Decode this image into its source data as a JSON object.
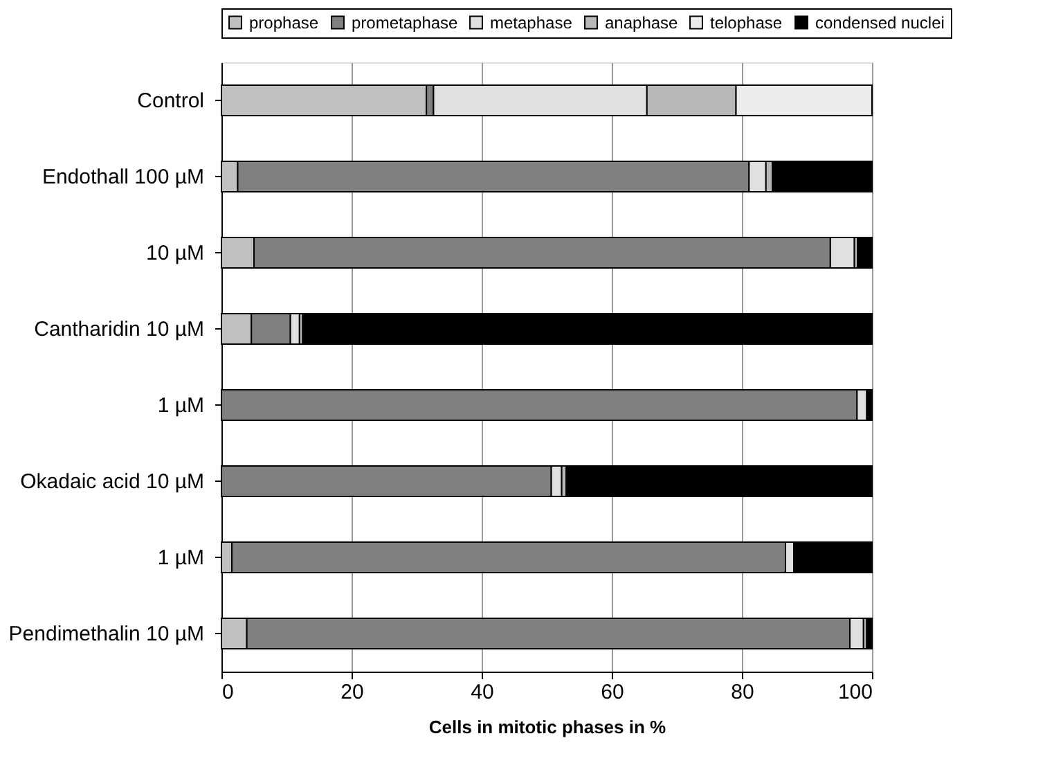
{
  "chart_data": {
    "type": "bar",
    "orientation": "horizontal",
    "stacked": true,
    "xlabel": "Cells in mitotic phases in %",
    "categories": [
      "Control",
      "Endothall 100 µM",
      "10 µM",
      "Cantharidin 10 µM",
      "1 µM",
      "Okadaic acid 10 µM",
      "1 µM",
      "Pendimethalin 10 µM"
    ],
    "series": [
      {
        "name": "prophase",
        "color": "#c0c0c0",
        "values": [
          31.5,
          2.5,
          5.0,
          4.6,
          0,
          0,
          1.6,
          3.9
        ]
      },
      {
        "name": "prometaphase",
        "color": "#808080",
        "values": [
          1.1,
          78.6,
          88.6,
          6.0,
          97.7,
          50.7,
          85.1,
          92.7
        ]
      },
      {
        "name": "metaphase",
        "color": "#e0e0e0",
        "values": [
          32.8,
          2.6,
          3.7,
          1.4,
          1.5,
          1.6,
          1.3,
          2.1
        ]
      },
      {
        "name": "anaphase",
        "color": "#b8b8b8",
        "values": [
          13.7,
          1.0,
          0.5,
          0.5,
          0,
          0.7,
          0,
          0.5
        ]
      },
      {
        "name": "telophase",
        "color": "#ececec",
        "values": [
          20.9,
          0,
          0,
          0,
          0,
          0,
          0,
          0
        ]
      },
      {
        "name": "condensed nuclei",
        "color": "#000000",
        "values": [
          0,
          15.3,
          2.2,
          87.5,
          0.8,
          47.0,
          12.0,
          0.8
        ]
      }
    ],
    "xlim": [
      0,
      100
    ],
    "xticks": [
      0,
      20,
      40,
      60,
      80,
      100
    ],
    "grid": "x",
    "legend": "top"
  }
}
